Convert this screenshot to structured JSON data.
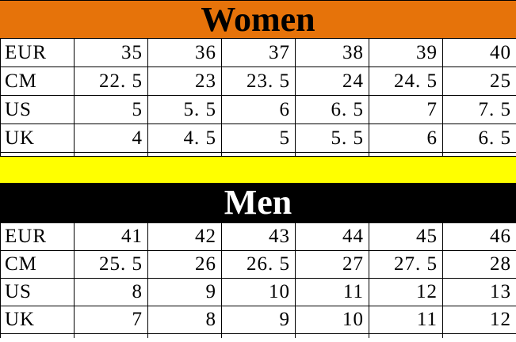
{
  "colors": {
    "women_header_bg": "#e6730a",
    "women_header_text": "#000000",
    "men_header_bg": "#000000",
    "men_header_text": "#ffffff",
    "divider_bar": "#ffff00",
    "table_border": "#000000"
  },
  "women": {
    "title": "Women",
    "rows": [
      {
        "label": "EUR",
        "values": [
          "35",
          "36",
          "37",
          "38",
          "39",
          "40"
        ]
      },
      {
        "label": "CM",
        "values": [
          "22. 5",
          "23",
          "23. 5",
          "24",
          "24. 5",
          "25"
        ]
      },
      {
        "label": "US",
        "values": [
          "5",
          "5. 5",
          "6",
          "6. 5",
          "7",
          "7. 5"
        ]
      },
      {
        "label": "UK",
        "values": [
          "4",
          "4. 5",
          "5",
          "5. 5",
          "6",
          "6. 5"
        ]
      }
    ]
  },
  "men": {
    "title": "Men",
    "rows": [
      {
        "label": "EUR",
        "values": [
          "41",
          "42",
          "43",
          "44",
          "45",
          "46"
        ]
      },
      {
        "label": "CM",
        "values": [
          "25. 5",
          "26",
          "26. 5",
          "27",
          "27. 5",
          "28"
        ]
      },
      {
        "label": "US",
        "values": [
          "8",
          "9",
          "10",
          "11",
          "12",
          "13"
        ]
      },
      {
        "label": "UK",
        "values": [
          "7",
          "8",
          "9",
          "10",
          "11",
          "12"
        ]
      }
    ]
  },
  "chart_data": [
    {
      "type": "table",
      "title": "Women",
      "row_headers": [
        "EUR",
        "CM",
        "US",
        "UK"
      ],
      "rows": {
        "EUR": [
          35,
          36,
          37,
          38,
          39,
          40
        ],
        "CM": [
          22.5,
          23,
          23.5,
          24,
          24.5,
          25
        ],
        "US": [
          5,
          5.5,
          6,
          6.5,
          7,
          7.5
        ],
        "UK": [
          4,
          4.5,
          5,
          5.5,
          6,
          6.5
        ]
      }
    },
    {
      "type": "table",
      "title": "Men",
      "row_headers": [
        "EUR",
        "CM",
        "US",
        "UK"
      ],
      "rows": {
        "EUR": [
          41,
          42,
          43,
          44,
          45,
          46
        ],
        "CM": [
          25.5,
          26,
          26.5,
          27,
          27.5,
          28
        ],
        "US": [
          8,
          9,
          10,
          11,
          12,
          13
        ],
        "UK": [
          7,
          8,
          9,
          10,
          11,
          12
        ]
      }
    }
  ]
}
